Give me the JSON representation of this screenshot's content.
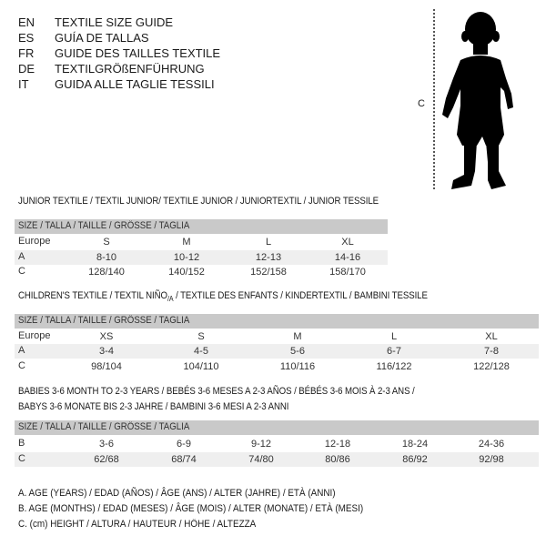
{
  "header": {
    "languages": [
      {
        "code": "EN",
        "text": "TEXTILE SIZE GUIDE"
      },
      {
        "code": "ES",
        "text": "GUÍA DE TALLAS"
      },
      {
        "code": "FR",
        "text": "GUIDE DES TAILLES TEXTILE"
      },
      {
        "code": "DE",
        "text": "TEXTILGRÖßENFÜHRUNG"
      },
      {
        "code": "IT",
        "text": "GUIDA ALLE TAGLIE TESSILI"
      }
    ]
  },
  "figure": {
    "height_label": "C",
    "icon": "baby-silhouette"
  },
  "size_header": "SIZE / TALLA / TAILLE / GRÖSSE / TAGLIA",
  "junior": {
    "title": "JUNIOR TEXTILE / TEXTIL JUNIOR/ TEXTILE JUNIOR / JUNIORTEXTIL / JUNIOR TESSILE",
    "rows": [
      {
        "label": "Europe",
        "values": [
          "S",
          "M",
          "L",
          "XL"
        ]
      },
      {
        "label": "A",
        "values": [
          "8-10",
          "10-12",
          "12-13",
          "14-16"
        ]
      },
      {
        "label": "C",
        "values": [
          "128/140",
          "140/152",
          "152/158",
          "158/170"
        ]
      }
    ]
  },
  "children": {
    "title": "CHILDREN'S TEXTILE / TEXTIL NIÑO",
    "title_sub": "/A",
    "title_rest": " / TEXTILE DES ENFANTS / KINDERTEXTIL / BAMBINI TESSILE",
    "rows": [
      {
        "label": "Europe",
        "values": [
          "XS",
          "S",
          "M",
          "L",
          "XL"
        ]
      },
      {
        "label": "A",
        "values": [
          "3-4",
          "4-5",
          "5-6",
          "6-7",
          "7-8"
        ]
      },
      {
        "label": "C",
        "values": [
          "98/104",
          "104/110",
          "110/116",
          "116/122",
          "122/128"
        ]
      }
    ]
  },
  "babies": {
    "title_line1": "BABIES 3-6 MONTH TO 2-3 YEARS / BEBÉS 3-6 MESES A 2-3 AÑOS / BÉBÉS 3-6 MOIS À 2-3 ANS /",
    "title_line2": "BABYS 3-6 MONATE BIS 2-3 JAHRE / BAMBINI 3-6 MESI A 2-3 ANNI",
    "rows": [
      {
        "label": "B",
        "values": [
          "3-6",
          "6-9",
          "9-12",
          "12-18",
          "18-24",
          "24-36"
        ]
      },
      {
        "label": "C",
        "values": [
          "62/68",
          "68/74",
          "74/80",
          "80/86",
          "86/92",
          "92/98"
        ]
      }
    ]
  },
  "legend": [
    "A. AGE (YEARS) / EDAD (AÑOS) / ÂGE (ANS) / ALTER (JAHRE) / ETÀ (ANNI)",
    "B. AGE (MONTHS) / EDAD (MESES) / ÂGE (MOIS) / ALTER (MONATE) / ETÀ (MESI)",
    "C. (cm) HEIGHT / ALTURA / HAUTEUR / HÖHE / ALTEZZA"
  ]
}
